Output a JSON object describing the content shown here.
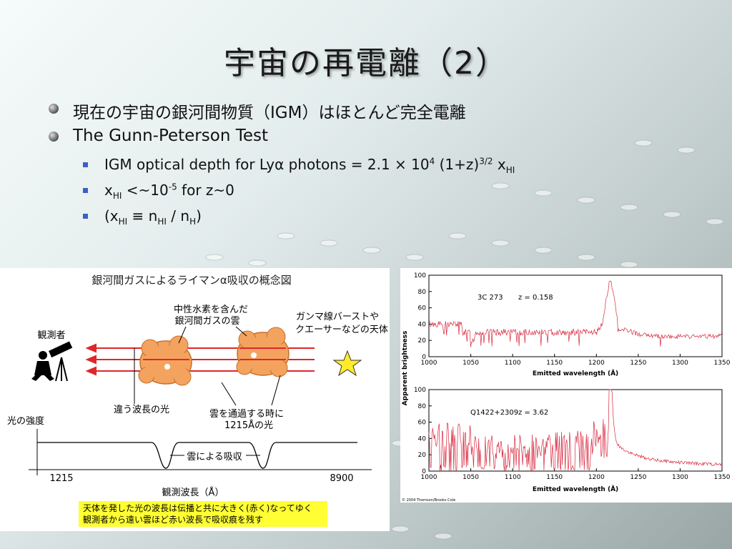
{
  "slide": {
    "title": "宇宙の再電離（2）",
    "bullets": [
      {
        "text": "現在の宇宙の銀河間物質（IGM）はほとんど完全電離"
      },
      {
        "text": "The Gunn-Peterson Test"
      }
    ],
    "sub_bullets": [
      {
        "prefix": "IGM optical depth for Lyα photons = 2.1 × 10",
        "exp1": "4",
        "mid": " (1+z)",
        "exp2": "3/2",
        "mid2": " x",
        "sub": "HI"
      },
      {
        "prefix": "x",
        "sub": "HI",
        "mid": " <~10",
        "exp": "-5",
        "suffix": " for z~0"
      },
      {
        "a": "(x",
        "sub1": "HI",
        "b": " ≡ n",
        "sub2": "HI",
        "c": " / n",
        "sub3": "H",
        "d": ")"
      }
    ]
  },
  "diagram": {
    "title": "銀河間ガスによるライマンα吸収の概念図",
    "observer": "観測者",
    "cloud_label_1": "中性水素を含んだ",
    "cloud_label_2": "銀河間ガスの雲",
    "source_label_1": "ガンマ線バーストや",
    "source_label_2": "クエーサーなどの天体",
    "wavelength_label": "違う波長の光",
    "pass_label_1": "雲を通過する時に",
    "pass_label_2": "1215Åの光",
    "intensity_label": "光の強度",
    "absorb_label": "雲による吸収",
    "tick_1215": "1215",
    "tick_8900": "8900",
    "x_axis_label": "観測波長（Å）",
    "note_1": "天体を発した光の波長は伝播と共に大きく(赤く)なってゆく",
    "note_2": "観測者から遠い雲ほど赤い波長で吸収痕を残す",
    "note_bg": "#ffff33",
    "arrow_color": "#e0262a",
    "cloud_color": "#f4a35f"
  },
  "spectra": {
    "ylabel": "Apparent brightness",
    "copyright": "© 2004 Thomson/Brooks Cole",
    "line_color": "#d8283f",
    "panels": [
      {
        "label": "3C 273",
        "z": "z = 0.158",
        "xlabel": "Emitted wavelength (Å)"
      },
      {
        "label": "Q1422+2309",
        "z": "z = 3.62",
        "xlabel": "Emitted wavelength (Å)"
      }
    ],
    "xticks": [
      "1000",
      "1050",
      "1100",
      "1150",
      "1200",
      "1250",
      "1300",
      "1350"
    ],
    "yticks": [
      "0",
      "20",
      "40",
      "60",
      "80",
      "100"
    ]
  }
}
